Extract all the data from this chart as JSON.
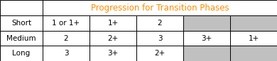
{
  "title": "Progression for Transition Phases",
  "title_color": "#FF8C00",
  "rows": [
    "Short",
    "Medium",
    "Long"
  ],
  "col_data": [
    [
      "1 or 1+",
      "1+",
      "2",
      "",
      ""
    ],
    [
      "2",
      "2+",
      "3",
      "3+",
      "1+"
    ],
    [
      "3",
      "3+",
      "2+",
      "",
      ""
    ]
  ],
  "shaded_cells": [
    [
      3,
      4
    ],
    [],
    [
      3,
      4
    ]
  ],
  "shaded_color": "#C0C0C0",
  "white_color": "#FFFFFF",
  "border_color": "#000000",
  "text_color": "#000000",
  "fontsize": 7.5,
  "title_fontsize": 8.5,
  "fig_width": 3.9,
  "fig_height": 0.87,
  "dpi": 100
}
